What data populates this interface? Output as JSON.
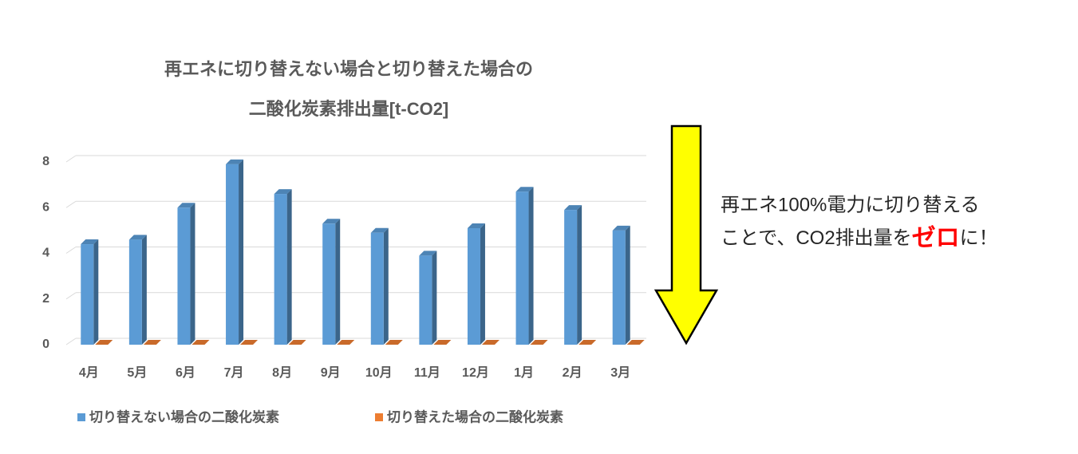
{
  "chart_data": {
    "type": "bar",
    "title": [
      "再エネに切り替えない場合と切り替えた場合の",
      "二酸化炭素排出量[t-CO2]"
    ],
    "categories": [
      "4月",
      "5月",
      "6月",
      "7月",
      "8月",
      "9月",
      "10月",
      "11月",
      "12月",
      "1月",
      "2月",
      "3月"
    ],
    "series": [
      {
        "name": "切り替えない場合の二酸化炭素",
        "color": "#5b9bd5",
        "values": [
          4.4,
          4.6,
          6.0,
          7.9,
          6.6,
          5.3,
          4.9,
          3.9,
          5.1,
          6.7,
          5.9,
          5.0
        ]
      },
      {
        "name": "切り替えた場合の二酸化炭素",
        "color": "#ed7d31",
        "values": [
          0,
          0,
          0,
          0,
          0,
          0,
          0,
          0,
          0,
          0,
          0,
          0
        ]
      }
    ],
    "ylim": [
      0,
      8
    ],
    "yticks": [
      0,
      2,
      4,
      6,
      8
    ],
    "grid": true,
    "legend": "bottom",
    "annotation": {
      "line1": "再エネ100%電力に切り替える",
      "line2_before": "ことで、CO2排出量を",
      "line2_emphasis": "ゼロ",
      "line2_after": "に！",
      "emphasis_color": "#ff0000"
    }
  }
}
